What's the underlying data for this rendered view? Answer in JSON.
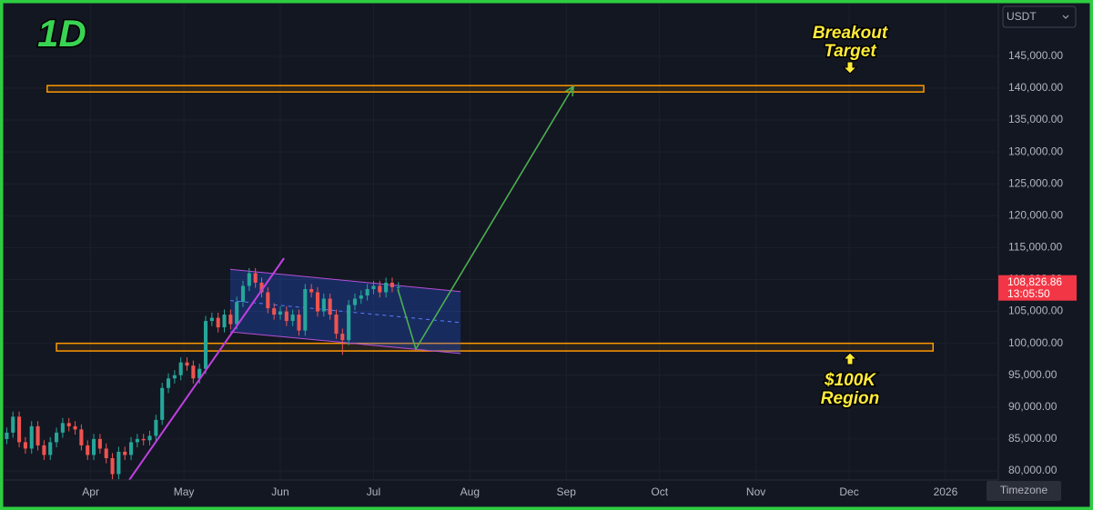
{
  "chart_data": {
    "type": "candlestick",
    "timeframe": "1D",
    "currency": "USDT",
    "timezone_button": "Timezone",
    "xlim": [
      63,
      383
    ],
    "xticks": [
      {
        "value": 91,
        "label": "Apr"
      },
      {
        "value": 121,
        "label": "May"
      },
      {
        "value": 152,
        "label": "Jun"
      },
      {
        "value": 182,
        "label": "Jul"
      },
      {
        "value": 213,
        "label": "Aug"
      },
      {
        "value": 244,
        "label": "Sep"
      },
      {
        "value": 274,
        "label": "Oct"
      },
      {
        "value": 305,
        "label": "Nov"
      },
      {
        "value": 335,
        "label": "Dec"
      },
      {
        "value": 366,
        "label": "2026"
      }
    ],
    "ylim": [
      78575,
      153245
    ],
    "yticks": [
      {
        "value": 80000,
        "label": "80,000.00"
      },
      {
        "value": 85000,
        "label": "85,000.00"
      },
      {
        "value": 90000,
        "label": "90,000.00"
      },
      {
        "value": 95000,
        "label": "95,000.00"
      },
      {
        "value": 100000,
        "label": "100,000.00"
      },
      {
        "value": 105000,
        "label": "105,000.00"
      },
      {
        "value": 110000,
        "label": "110,000.00"
      },
      {
        "value": 115000,
        "label": "115,000.00"
      },
      {
        "value": 120000,
        "label": "120,000.00"
      },
      {
        "value": 125000,
        "label": "125,000.00"
      },
      {
        "value": 130000,
        "label": "130,000.00"
      },
      {
        "value": 135000,
        "label": "135,000.00"
      },
      {
        "value": 140000,
        "label": "140,000.00"
      },
      {
        "value": 145000,
        "label": "145,000.00"
      }
    ],
    "grid": true,
    "up_color": "#26a69a",
    "down_color": "#ef5350",
    "x": [
      64,
      66,
      68,
      70,
      72,
      74,
      76,
      78,
      80,
      82,
      84,
      86,
      88,
      90,
      92,
      94,
      96,
      98,
      100,
      102,
      104,
      106,
      108,
      110,
      112,
      114,
      116,
      118,
      120,
      122,
      124,
      126,
      128,
      130,
      132,
      134,
      136,
      138,
      140,
      142,
      144,
      146,
      148,
      150,
      152,
      154,
      156,
      158,
      160,
      162,
      164,
      166,
      168,
      170,
      172,
      174,
      176,
      178,
      180,
      182,
      184,
      186,
      188,
      190
    ],
    "candles": [
      [
        85000,
        86800,
        84200,
        86000
      ],
      [
        86000,
        89300,
        85200,
        88500
      ],
      [
        88500,
        89300,
        83700,
        84500
      ],
      [
        84500,
        85300,
        82700,
        83500
      ],
      [
        83500,
        87800,
        82700,
        87000
      ],
      [
        87000,
        87800,
        83200,
        84000
      ],
      [
        84000,
        84800,
        81700,
        82500
      ],
      [
        82500,
        85300,
        81700,
        84500
      ],
      [
        84500,
        86800,
        83700,
        86000
      ],
      [
        86000,
        88300,
        85200,
        87500
      ],
      [
        87500,
        88300,
        86200,
        87000
      ],
      [
        87000,
        87800,
        85700,
        86500
      ],
      [
        86500,
        87300,
        83200,
        84000
      ],
      [
        84000,
        84800,
        81700,
        82500
      ],
      [
        82500,
        85800,
        81700,
        85000
      ],
      [
        85000,
        85800,
        82700,
        83500
      ],
      [
        83500,
        84300,
        81200,
        82000
      ],
      [
        82000,
        82800,
        78700,
        79500
      ],
      [
        79500,
        83800,
        78700,
        83000
      ],
      [
        83000,
        83800,
        81700,
        82500
      ],
      [
        82500,
        85300,
        81700,
        84500
      ],
      [
        84500,
        85800,
        83700,
        85000
      ],
      [
        85000,
        85800,
        84000,
        84800
      ],
      [
        84800,
        86300,
        84000,
        85500
      ],
      [
        85500,
        88800,
        84700,
        88000
      ],
      [
        88000,
        93800,
        87200,
        93000
      ],
      [
        93000,
        95300,
        92200,
        94500
      ],
      [
        94500,
        95800,
        93700,
        95000
      ],
      [
        95000,
        97800,
        94200,
        97000
      ],
      [
        97000,
        97800,
        95700,
        96500
      ],
      [
        96500,
        97300,
        93700,
        94500
      ],
      [
        94500,
        96800,
        93700,
        96000
      ],
      [
        96000,
        104300,
        95200,
        103500
      ],
      [
        103500,
        104800,
        102700,
        104000
      ],
      [
        104000,
        104800,
        101700,
        102500
      ],
      [
        102500,
        105300,
        101700,
        104500
      ],
      [
        104500,
        105300,
        102200,
        103000
      ],
      [
        103000,
        107300,
        102200,
        106500
      ],
      [
        106500,
        109800,
        105700,
        109000
      ],
      [
        109000,
        111800,
        108200,
        111000
      ],
      [
        111000,
        111800,
        108700,
        109500
      ],
      [
        109500,
        110300,
        107200,
        108000
      ],
      [
        108000,
        108800,
        104700,
        105500
      ],
      [
        105500,
        106300,
        103700,
        104500
      ],
      [
        104500,
        105800,
        103700,
        105000
      ],
      [
        105000,
        105800,
        102700,
        103500
      ],
      [
        103500,
        105300,
        102700,
        104500
      ],
      [
        104500,
        105300,
        101200,
        102000
      ],
      [
        102000,
        109300,
        101200,
        108500
      ],
      [
        108500,
        109300,
        107200,
        108000
      ],
      [
        108000,
        108800,
        104200,
        105000
      ],
      [
        105000,
        107800,
        104200,
        107000
      ],
      [
        107000,
        107800,
        103700,
        104500
      ],
      [
        104500,
        105300,
        100700,
        101500
      ],
      [
        101500,
        102300,
        98200,
        100500
      ],
      [
        100500,
        106800,
        99700,
        106000
      ],
      [
        106000,
        107800,
        105200,
        107000
      ],
      [
        107000,
        108300,
        106200,
        107500
      ],
      [
        107500,
        109300,
        106700,
        108500
      ],
      [
        108500,
        109800,
        107700,
        109000
      ],
      [
        109000,
        109800,
        107200,
        108000
      ],
      [
        108000,
        110300,
        107200,
        109500
      ],
      [
        109500,
        110300,
        108000,
        108800
      ],
      [
        108800,
        109600,
        108000,
        108826.86
      ]
    ],
    "last_price": {
      "value": 108826.86,
      "label": "108,826.86"
    },
    "countdown": "13:05:50",
    "zones": [
      {
        "low": 139400,
        "high": 140400,
        "from": 77,
        "to": 359
      },
      {
        "low": 98800,
        "high": 100000,
        "from": 80,
        "to": 362
      }
    ],
    "trendline": {
      "x": [
        103.4,
        153.2
      ],
      "y": [
        78575,
        113345
      ]
    },
    "channel": {
      "x": [
        135.9,
        210
      ],
      "top": [
        111600,
        108100
      ],
      "bottom": [
        101800,
        98400
      ]
    },
    "projection": {
      "x": [
        189.8,
        195.6,
        246.3
      ],
      "y": [
        108500,
        99100,
        140280
      ]
    },
    "annotations": [
      {
        "lines": [
          "Breakout",
          "Target"
        ]
      },
      {
        "lines": [
          "$100K",
          "Region"
        ]
      }
    ]
  }
}
